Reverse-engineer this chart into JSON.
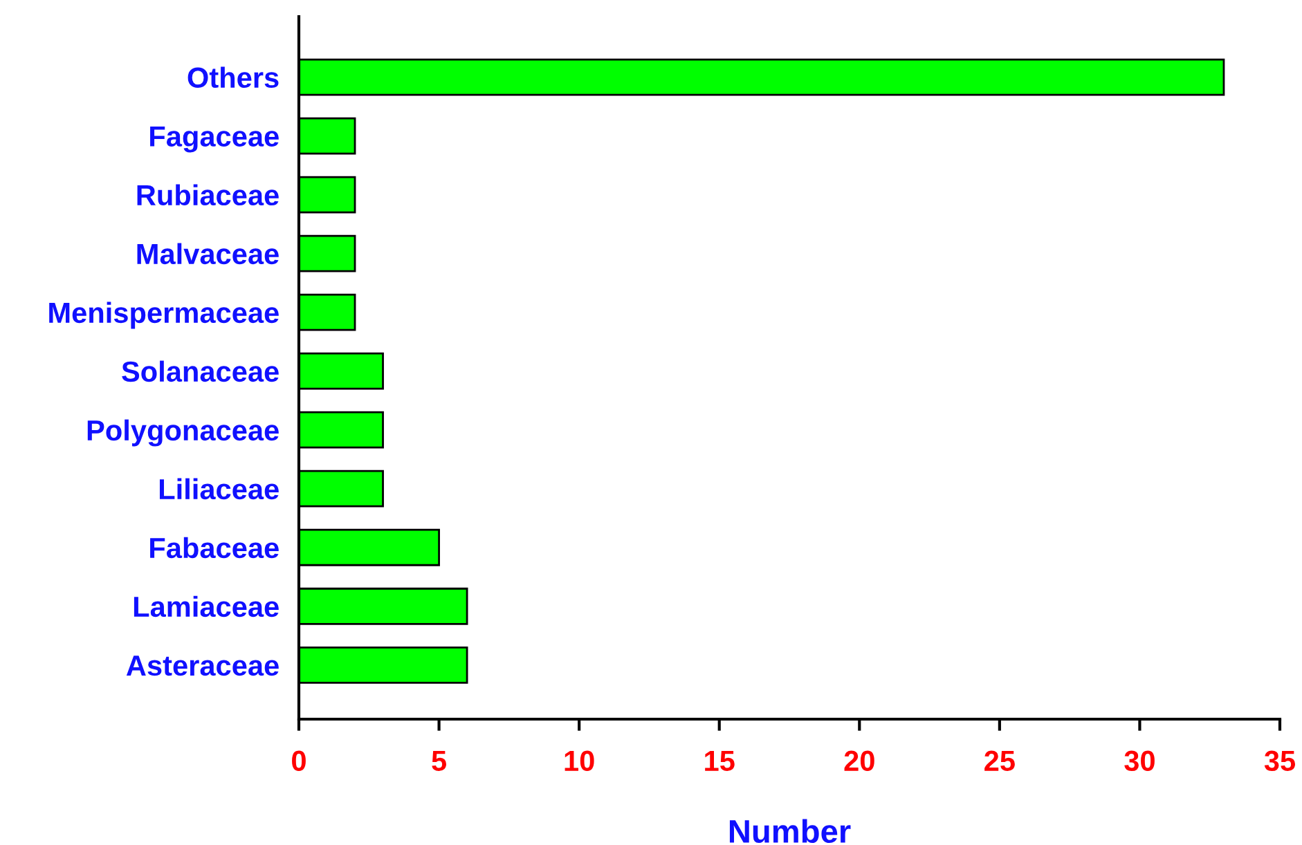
{
  "chart_data": {
    "type": "bar",
    "orientation": "horizontal",
    "xlabel": "Number",
    "categories": [
      "Others",
      "Fagaceae",
      "Rubiaceae",
      "Malvaceae",
      "Menispermaceae",
      "Solanaceae",
      "Polygonaceae",
      "Liliaceae",
      "Fabaceae",
      "Lamiaceae",
      "Asteraceae"
    ],
    "values": [
      33,
      2,
      2,
      2,
      2,
      3,
      3,
      3,
      5,
      6,
      6
    ],
    "color": "#00ff00",
    "xlim": [
      0,
      35
    ],
    "xticks": [
      0,
      5,
      10,
      15,
      20,
      25,
      30,
      35
    ],
    "grid": false
  }
}
